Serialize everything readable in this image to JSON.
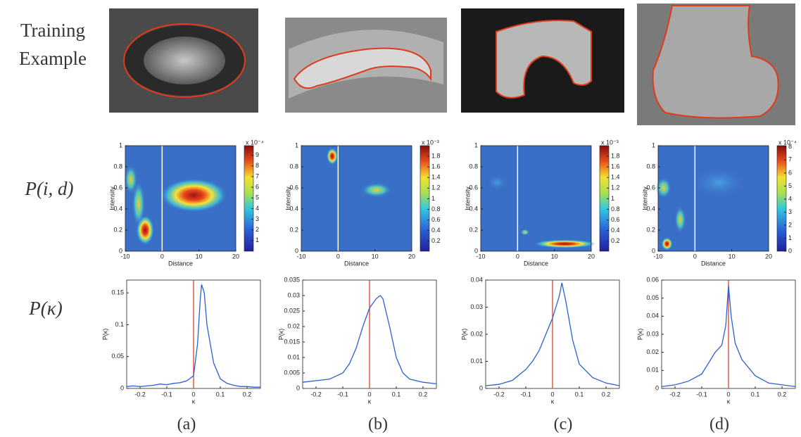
{
  "training_label": [
    "Training",
    "Example"
  ],
  "row_labels": [
    "P(i, d)",
    "P(κ)"
  ],
  "panels": [
    {
      "caption": "(a)",
      "heatmap": {
        "xlabel": "Distance",
        "ylabel": "Intensity",
        "xlim": [
          -10,
          20
        ],
        "xticks": [
          -10,
          0,
          10,
          20
        ],
        "ylim": [
          0,
          1
        ],
        "yticks": [
          0,
          0.2,
          0.4,
          0.6,
          0.8,
          1
        ],
        "colorbar": {
          "lim": [
            0,
            9.9
          ],
          "ticks": [
            1,
            2,
            3,
            4,
            5,
            6,
            7,
            8,
            9
          ],
          "exponent": "x 10⁻⁴"
        }
      },
      "curve": {
        "xlabel": "κ",
        "ylabel": "P(κ)",
        "color": "#2a5fd6",
        "xlim": [
          -0.25,
          0.25
        ],
        "xticks": [
          -0.2,
          -0.1,
          0,
          0.1,
          0.2
        ],
        "ylim": [
          0,
          0.17
        ],
        "yticks": [
          0,
          0.05,
          0.1,
          0.15
        ],
        "x": [
          -0.25,
          -0.225,
          -0.2,
          -0.175,
          -0.15,
          -0.125,
          -0.1,
          -0.075,
          -0.05,
          -0.025,
          0,
          0.015,
          0.025,
          0.03,
          0.04,
          0.05,
          0.075,
          0.1,
          0.125,
          0.15,
          0.175,
          0.2,
          0.225,
          0.25
        ],
        "values": [
          0.003,
          0.004,
          0.003,
          0.004,
          0.005,
          0.007,
          0.006,
          0.008,
          0.009,
          0.012,
          0.02,
          0.07,
          0.14,
          0.163,
          0.15,
          0.1,
          0.04,
          0.015,
          0.008,
          0.005,
          0.003,
          0.003,
          0.002,
          0.002
        ]
      }
    },
    {
      "caption": "(b)",
      "heatmap": {
        "xlabel": "Distance",
        "ylabel": "Intensity",
        "xlim": [
          -10,
          20
        ],
        "xticks": [
          -10,
          0,
          10,
          20
        ],
        "ylim": [
          0,
          1
        ],
        "yticks": [
          0,
          0.2,
          0.4,
          0.6,
          0.8,
          1
        ],
        "colorbar": {
          "lim": [
            0.01,
            2.0
          ],
          "ticks": [
            0.2,
            0.4,
            0.6,
            0.8,
            1,
            1.2,
            1.4,
            1.6,
            1.8
          ],
          "exponent": "x 10⁻³"
        }
      },
      "curve": {
        "xlabel": "κ",
        "ylabel": "P(κ)",
        "color": "#2a5fd6",
        "xlim": [
          -0.25,
          0.25
        ],
        "xticks": [
          -0.2,
          -0.1,
          0,
          0.1,
          0.2
        ],
        "ylim": [
          0,
          0.035
        ],
        "yticks": [
          0,
          0.005,
          0.01,
          0.015,
          0.02,
          0.025,
          0.03,
          0.035
        ],
        "x": [
          -0.25,
          -0.2,
          -0.15,
          -0.1,
          -0.075,
          -0.05,
          -0.025,
          0,
          0.025,
          0.04,
          0.05,
          0.075,
          0.1,
          0.125,
          0.15,
          0.2,
          0.25
        ],
        "values": [
          0.002,
          0.0025,
          0.003,
          0.005,
          0.008,
          0.013,
          0.02,
          0.026,
          0.029,
          0.03,
          0.029,
          0.02,
          0.01,
          0.005,
          0.003,
          0.002,
          0.0015
        ]
      }
    },
    {
      "caption": "(c)",
      "heatmap": {
        "xlabel": "Distance",
        "ylabel": "Intensity",
        "xlim": [
          -10,
          20
        ],
        "xticks": [
          -10,
          0,
          10,
          20
        ],
        "ylim": [
          0,
          1
        ],
        "yticks": [
          0,
          0.2,
          0.4,
          0.6,
          0.8,
          1
        ],
        "colorbar": {
          "lim": [
            0.01,
            2.0
          ],
          "ticks": [
            0.2,
            0.4,
            0.6,
            0.8,
            1,
            1.2,
            1.4,
            1.6,
            1.8
          ],
          "exponent": "x 10⁻³"
        }
      },
      "curve": {
        "xlabel": "κ",
        "ylabel": "P(κ)",
        "color": "#2a5fd6",
        "xlim": [
          -0.25,
          0.25
        ],
        "xticks": [
          -0.2,
          -0.1,
          0,
          0.1,
          0.2
        ],
        "ylim": [
          0,
          0.04
        ],
        "yticks": [
          0,
          0.01,
          0.02,
          0.03,
          0.04
        ],
        "x": [
          -0.25,
          -0.2,
          -0.15,
          -0.1,
          -0.075,
          -0.05,
          -0.025,
          0,
          0.025,
          0.035,
          0.05,
          0.075,
          0.1,
          0.15,
          0.2,
          0.25
        ],
        "values": [
          0.001,
          0.0015,
          0.003,
          0.007,
          0.01,
          0.014,
          0.02,
          0.026,
          0.034,
          0.039,
          0.032,
          0.018,
          0.009,
          0.004,
          0.002,
          0.001
        ]
      }
    },
    {
      "caption": "(d)",
      "heatmap": {
        "xlabel": "Distance",
        "ylabel": "Intensity",
        "xlim": [
          -10,
          20
        ],
        "xticks": [
          -10,
          0,
          10,
          20
        ],
        "ylim": [
          0,
          1
        ],
        "yticks": [
          0,
          0.2,
          0.4,
          0.6,
          0.8,
          1
        ],
        "colorbar": {
          "lim": [
            0,
            8.1
          ],
          "ticks": [
            0,
            1,
            2,
            3,
            4,
            5,
            6,
            7,
            8
          ],
          "exponent": "x 10⁻⁴"
        }
      },
      "curve": {
        "xlabel": "κ",
        "ylabel": "P(κ)",
        "color": "#2a5fd6",
        "xlim": [
          -0.25,
          0.25
        ],
        "xticks": [
          -0.2,
          -0.1,
          0,
          0.1,
          0.2
        ],
        "ylim": [
          0,
          0.06
        ],
        "yticks": [
          0,
          0.01,
          0.02,
          0.03,
          0.04,
          0.05,
          0.06
        ],
        "x": [
          -0.25,
          -0.2,
          -0.15,
          -0.1,
          -0.05,
          -0.025,
          -0.01,
          0,
          0.01,
          0.025,
          0.05,
          0.1,
          0.15,
          0.2,
          0.25
        ],
        "values": [
          0.001,
          0.002,
          0.004,
          0.008,
          0.02,
          0.024,
          0.035,
          0.057,
          0.04,
          0.025,
          0.016,
          0.007,
          0.003,
          0.002,
          0.001
        ]
      }
    }
  ]
}
